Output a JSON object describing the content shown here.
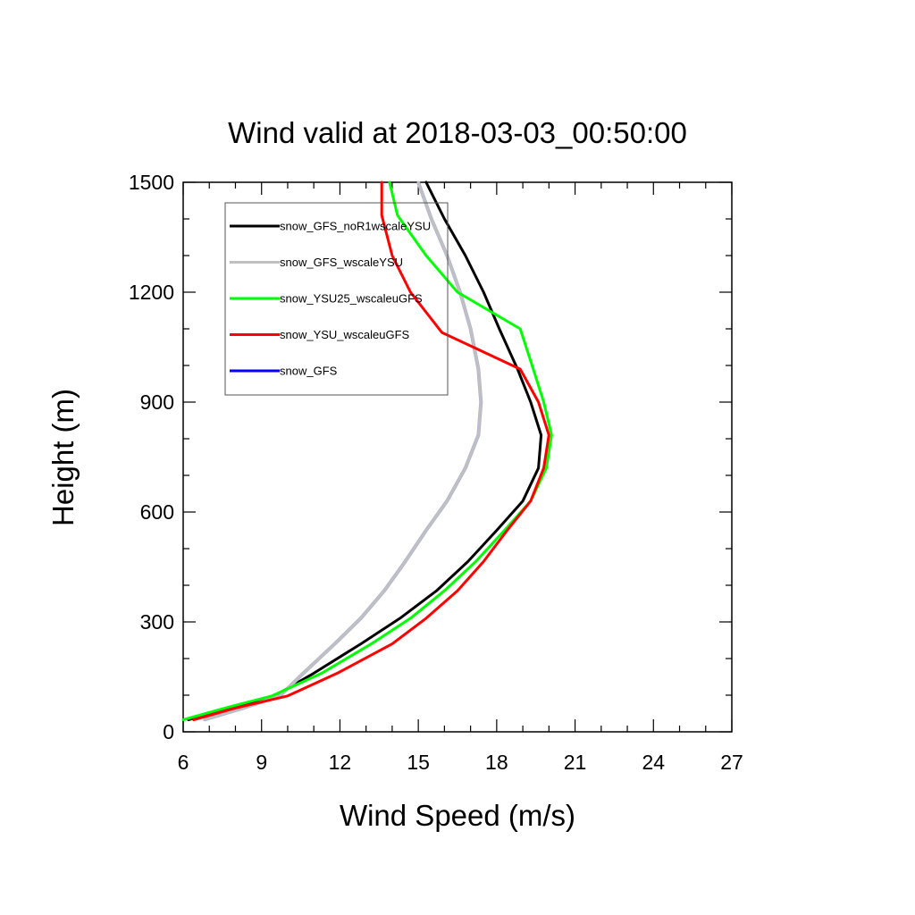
{
  "chart_data": {
    "type": "line",
    "title": "Wind valid at 2018-03-03_00:50:00",
    "xlabel": "Wind Speed (m/s)",
    "ylabel": "Height (m)",
    "xlim": [
      6,
      27
    ],
    "ylim": [
      0,
      1500
    ],
    "xticks": [
      6,
      9,
      12,
      15,
      18,
      21,
      24,
      27
    ],
    "yticks": [
      0,
      300,
      600,
      900,
      1200,
      1500
    ],
    "grid": false,
    "legend_position": "top-left",
    "series": [
      {
        "name": "snow_GFS_noR1wscaleYSU",
        "color": "#000000",
        "points": [
          [
            6.2,
            33
          ],
          [
            7.8,
            65
          ],
          [
            9.5,
            98
          ],
          [
            11.0,
            160
          ],
          [
            12.8,
            240
          ],
          [
            14.3,
            310
          ],
          [
            15.7,
            385
          ],
          [
            16.9,
            465
          ],
          [
            18.0,
            550
          ],
          [
            19.0,
            630
          ],
          [
            19.6,
            720
          ],
          [
            19.7,
            810
          ],
          [
            19.3,
            900
          ],
          [
            18.8,
            990
          ],
          [
            18.1,
            1100
          ],
          [
            17.5,
            1200
          ],
          [
            16.8,
            1300
          ],
          [
            16.0,
            1400
          ],
          [
            15.3,
            1500
          ]
        ]
      },
      {
        "name": "snow_GFS_wscaleYSU",
        "color": "#c0c0c0",
        "points": [
          [
            6.8,
            33
          ],
          [
            8.3,
            65
          ],
          [
            9.7,
            98
          ],
          [
            10.6,
            160
          ],
          [
            11.8,
            240
          ],
          [
            12.8,
            310
          ],
          [
            13.7,
            385
          ],
          [
            14.5,
            465
          ],
          [
            15.3,
            550
          ],
          [
            16.1,
            630
          ],
          [
            16.8,
            720
          ],
          [
            17.3,
            810
          ],
          [
            17.4,
            900
          ],
          [
            17.3,
            990
          ],
          [
            17.0,
            1100
          ],
          [
            16.6,
            1200
          ],
          [
            16.1,
            1300
          ],
          [
            15.5,
            1400
          ],
          [
            15.0,
            1500
          ]
        ]
      },
      {
        "name": "snow_YSU25_wscaleuGFS",
        "color": "#00ff00",
        "points": [
          [
            6.0,
            33
          ],
          [
            7.6,
            65
          ],
          [
            9.4,
            98
          ],
          [
            11.3,
            160
          ],
          [
            13.2,
            240
          ],
          [
            14.7,
            310
          ],
          [
            16.0,
            385
          ],
          [
            17.2,
            465
          ],
          [
            18.3,
            550
          ],
          [
            19.3,
            630
          ],
          [
            19.9,
            720
          ],
          [
            20.1,
            810
          ],
          [
            19.8,
            900
          ],
          [
            19.4,
            990
          ],
          [
            18.9,
            1100
          ],
          [
            16.5,
            1200
          ],
          [
            15.3,
            1300
          ],
          [
            14.2,
            1410
          ],
          [
            13.9,
            1500
          ]
        ]
      },
      {
        "name": "snow_YSU_wscaleuGFS",
        "color": "#ff0000",
        "points": [
          [
            6.4,
            33
          ],
          [
            8.0,
            65
          ],
          [
            10.0,
            98
          ],
          [
            11.9,
            160
          ],
          [
            14.0,
            240
          ],
          [
            15.3,
            310
          ],
          [
            16.5,
            385
          ],
          [
            17.5,
            465
          ],
          [
            18.4,
            550
          ],
          [
            19.3,
            630
          ],
          [
            19.8,
            720
          ],
          [
            20.0,
            810
          ],
          [
            19.6,
            900
          ],
          [
            18.9,
            990
          ],
          [
            15.9,
            1090
          ],
          [
            14.7,
            1200
          ],
          [
            14.0,
            1300
          ],
          [
            13.6,
            1410
          ],
          [
            13.6,
            1500
          ]
        ]
      },
      {
        "name": "snow_GFS",
        "color": "#0000ff",
        "points": []
      }
    ]
  }
}
